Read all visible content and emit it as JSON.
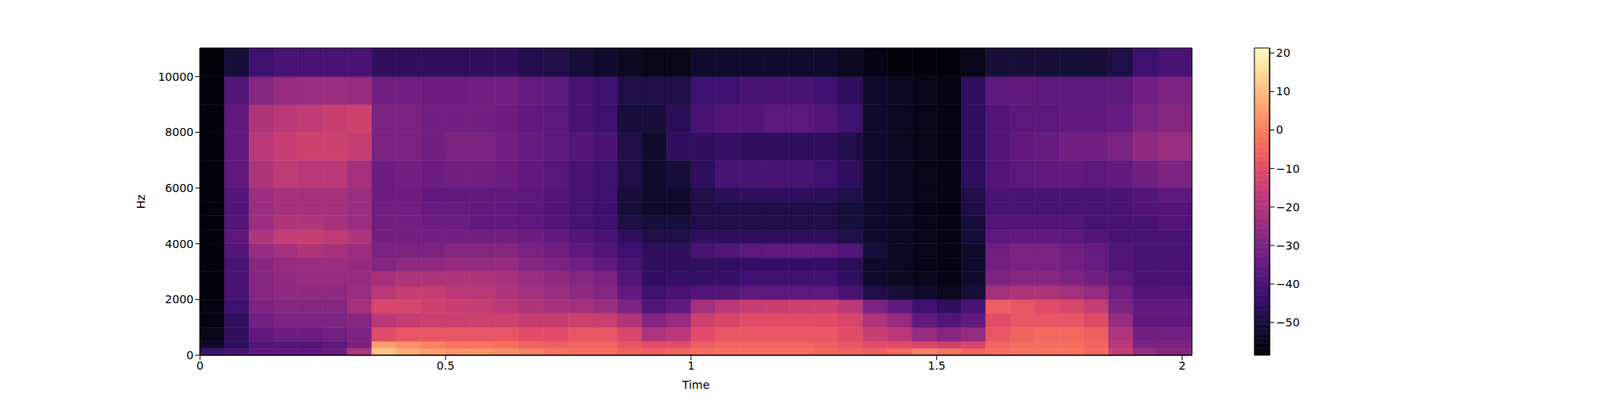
{
  "chart_data": {
    "type": "heatmap",
    "x_label": "Time",
    "y_label": "Hz",
    "xlim": [
      0,
      2.02
    ],
    "xticks": [
      0,
      0.5,
      1,
      1.5,
      2
    ],
    "ylim": [
      0,
      11025
    ],
    "yticks": [
      0,
      2000,
      4000,
      6000,
      8000,
      10000
    ],
    "x_edges": [
      0,
      0.05,
      0.1,
      0.15,
      0.2,
      0.25,
      0.3,
      0.35,
      0.4,
      0.45,
      0.5,
      0.55,
      0.6,
      0.65,
      0.7,
      0.75,
      0.8,
      0.85,
      0.9,
      0.95,
      1.0,
      1.05,
      1.1,
      1.15,
      1.2,
      1.25,
      1.3,
      1.35,
      1.4,
      1.45,
      1.5,
      1.55,
      1.6,
      1.65,
      1.7,
      1.75,
      1.8,
      1.85,
      1.9,
      1.95,
      2.02
    ],
    "y_edges": [
      0,
      250,
      500,
      1000,
      1500,
      2000,
      2500,
      3000,
      3500,
      4000,
      4500,
      5000,
      5500,
      6000,
      7000,
      8000,
      9000,
      10000,
      11025
    ],
    "cells": [
      [
        -42,
        -52,
        -55,
        -56,
        -56,
        -57,
        -57,
        -57,
        -57,
        -57,
        -57,
        -57,
        -57,
        -57,
        -57,
        -57,
        -57,
        -58
      ],
      [
        -40,
        -45,
        -45,
        -45,
        -42,
        -40,
        -40,
        -40,
        -38,
        -36,
        -38,
        -38,
        -38,
        -35,
        -35,
        -35,
        -38,
        -50
      ],
      [
        -35,
        -38,
        -35,
        -32,
        -30,
        -28,
        -28,
        -27,
        -25,
        -20,
        -24,
        -24,
        -24,
        -20,
        -18,
        -20,
        -28,
        -42
      ],
      [
        -35,
        -38,
        -33,
        -30,
        -28,
        -26,
        -26,
        -25,
        -22,
        -16,
        -20,
        -22,
        -22,
        -17,
        -15,
        -18,
        -25,
        -40
      ],
      [
        -35,
        -38,
        -33,
        -30,
        -28,
        -26,
        -25,
        -24,
        -20,
        -15,
        -20,
        -22,
        -22,
        -18,
        -14,
        -17,
        -24,
        -40
      ],
      [
        -33,
        -36,
        -32,
        -30,
        -28,
        -26,
        -25,
        -24,
        -22,
        -17,
        -22,
        -22,
        -22,
        -18,
        -14,
        -15,
        -24,
        -40
      ],
      [
        -20,
        -30,
        -30,
        -28,
        -22,
        -24,
        -25,
        -25,
        -24,
        -20,
        -24,
        -24,
        -24,
        -22,
        -16,
        -14,
        -25,
        -40
      ],
      [
        12,
        5,
        -10,
        -18,
        -12,
        -18,
        -22,
        -28,
        -30,
        -32,
        -32,
        -32,
        -33,
        -33,
        -30,
        -30,
        -32,
        -45
      ],
      [
        8,
        3,
        -8,
        -16,
        -12,
        -16,
        -20,
        -26,
        -30,
        -32,
        -32,
        -32,
        -33,
        -32,
        -30,
        -30,
        -32,
        -45
      ],
      [
        5,
        0,
        -8,
        -15,
        -14,
        -16,
        -20,
        -26,
        -30,
        -32,
        -33,
        -34,
        -35,
        -33,
        -32,
        -32,
        -33,
        -45
      ],
      [
        3,
        -2,
        -8,
        -15,
        -15,
        -18,
        -20,
        -25,
        -28,
        -32,
        -33,
        -34,
        -35,
        -32,
        -30,
        -32,
        -33,
        -45
      ],
      [
        3,
        -2,
        -8,
        -14,
        -16,
        -18,
        -20,
        -25,
        -28,
        -32,
        -35,
        -35,
        -35,
        -32,
        -30,
        -32,
        -32,
        -45
      ],
      [
        2,
        -3,
        -8,
        -14,
        -18,
        -20,
        -22,
        -25,
        -28,
        -32,
        -35,
        -35,
        -35,
        -33,
        -32,
        -33,
        -32,
        -45
      ],
      [
        0,
        -5,
        -10,
        -16,
        -20,
        -22,
        -24,
        -28,
        -30,
        -33,
        -36,
        -36,
        -36,
        -35,
        -34,
        -35,
        -34,
        -47
      ],
      [
        -2,
        -6,
        -10,
        -16,
        -22,
        -24,
        -26,
        -30,
        -32,
        -35,
        -38,
        -38,
        -38,
        -37,
        -36,
        -36,
        -36,
        -48
      ],
      [
        -3,
        -5,
        -8,
        -14,
        -22,
        -26,
        -28,
        -32,
        -35,
        -38,
        -40,
        -40,
        -40,
        -40,
        -38,
        -40,
        -40,
        -50
      ],
      [
        -3,
        -5,
        -8,
        -15,
        -24,
        -28,
        -30,
        -35,
        -38,
        -40,
        -42,
        -42,
        -42,
        -42,
        -40,
        -42,
        -42,
        -52
      ],
      [
        -5,
        -8,
        -12,
        -20,
        -30,
        -35,
        -38,
        -40,
        -42,
        -45,
        -48,
        -50,
        -50,
        -48,
        -48,
        -50,
        -48,
        -54
      ],
      [
        -6,
        -10,
        -20,
        -28,
        -38,
        -42,
        -45,
        -45,
        -45,
        -48,
        -50,
        -52,
        -52,
        -52,
        -52,
        -50,
        -48,
        -55
      ],
      [
        -5,
        -10,
        -18,
        -25,
        -35,
        -40,
        -44,
        -45,
        -45,
        -48,
        -50,
        -52,
        -52,
        -50,
        -45,
        -46,
        -48,
        -55
      ],
      [
        -3,
        -6,
        -10,
        -14,
        -22,
        -38,
        -44,
        -45,
        -40,
        -45,
        -48,
        -48,
        -48,
        -45,
        -45,
        -40,
        -42,
        -52
      ],
      [
        -3,
        -5,
        -8,
        -12,
        -18,
        -38,
        -44,
        -45,
        -38,
        -45,
        -48,
        -48,
        -46,
        -40,
        -44,
        -38,
        -42,
        -52
      ],
      [
        -3,
        -5,
        -8,
        -10,
        -16,
        -36,
        -42,
        -44,
        -36,
        -45,
        -48,
        -48,
        -45,
        -40,
        -45,
        -38,
        -40,
        -52
      ],
      [
        -3,
        -5,
        -8,
        -10,
        -15,
        -36,
        -42,
        -44,
        -35,
        -45,
        -48,
        -48,
        -45,
        -40,
        -45,
        -36,
        -40,
        -52
      ],
      [
        -3,
        -5,
        -8,
        -10,
        -14,
        -36,
        -42,
        -44,
        -35,
        -45,
        -48,
        -48,
        -45,
        -40,
        -45,
        -36,
        -40,
        -52
      ],
      [
        -4,
        -6,
        -8,
        -10,
        -14,
        -36,
        -42,
        -44,
        -36,
        -45,
        -48,
        -48,
        -46,
        -42,
        -45,
        -38,
        -42,
        -52
      ],
      [
        -5,
        -8,
        -10,
        -12,
        -18,
        -40,
        -45,
        -46,
        -38,
        -48,
        -50,
        -50,
        -48,
        -45,
        -48,
        -42,
        -45,
        -54
      ],
      [
        -6,
        -10,
        -15,
        -20,
        -30,
        -48,
        -52,
        -52,
        -50,
        -52,
        -52,
        -52,
        -52,
        -52,
        -52,
        -52,
        -52,
        -56
      ],
      [
        -4,
        -10,
        -18,
        -25,
        -35,
        -50,
        -54,
        -54,
        -54,
        -54,
        -54,
        -54,
        -54,
        -54,
        -54,
        -54,
        -54,
        -57
      ],
      [
        0,
        -12,
        -25,
        -35,
        -42,
        -52,
        -55,
        -55,
        -55,
        -55,
        -55,
        -55,
        -55,
        -55,
        -55,
        -55,
        -55,
        -57
      ],
      [
        -2,
        -14,
        -28,
        -38,
        -45,
        -54,
        -56,
        -56,
        -56,
        -56,
        -56,
        -56,
        -56,
        -56,
        -56,
        -56,
        -56,
        -57
      ],
      [
        -5,
        -12,
        -25,
        -35,
        -40,
        -50,
        -52,
        -52,
        -52,
        -50,
        -50,
        -48,
        -48,
        -45,
        -45,
        -45,
        -45,
        -55
      ],
      [
        -3,
        -5,
        -8,
        -10,
        -6,
        -22,
        -30,
        -32,
        -32,
        -36,
        -38,
        -40,
        -40,
        -38,
        -38,
        -38,
        -36,
        -50
      ],
      [
        -2,
        -3,
        -5,
        -8,
        -8,
        -20,
        -28,
        -30,
        -30,
        -35,
        -38,
        -40,
        -40,
        -36,
        -35,
        -36,
        -35,
        -50
      ],
      [
        -2,
        -3,
        -4,
        -8,
        -10,
        -20,
        -28,
        -30,
        -30,
        -35,
        -38,
        -40,
        -40,
        -35,
        -34,
        -36,
        -36,
        -50
      ],
      [
        -2,
        -3,
        -4,
        -8,
        -12,
        -22,
        -30,
        -32,
        -32,
        -36,
        -38,
        -40,
        -40,
        -35,
        -32,
        -35,
        -36,
        -50
      ],
      [
        -4,
        -5,
        -6,
        -10,
        -16,
        -25,
        -32,
        -34,
        -34,
        -38,
        -40,
        -40,
        -40,
        -36,
        -32,
        -35,
        -36,
        -50
      ],
      [
        -15,
        -18,
        -20,
        -25,
        -30,
        -32,
        -36,
        -38,
        -38,
        -40,
        -40,
        -40,
        -40,
        -35,
        -30,
        -34,
        -36,
        -48
      ],
      [
        -25,
        -30,
        -32,
        -35,
        -35,
        -38,
        -40,
        -40,
        -40,
        -40,
        -40,
        -38,
        -38,
        -32,
        -26,
        -30,
        -32,
        -42
      ],
      [
        -28,
        -30,
        -32,
        -35,
        -35,
        -38,
        -40,
        -40,
        -40,
        -40,
        -38,
        -38,
        -36,
        -30,
        -24,
        -28,
        -30,
        -40
      ]
    ],
    "colorbar_lim": [
      -58.5,
      21.3
    ],
    "colorbar_ticks": [
      {
        "value": -50,
        "label": "−50"
      },
      {
        "value": -40,
        "label": "−40"
      },
      {
        "value": -30,
        "label": "−30"
      },
      {
        "value": -20,
        "label": "−20"
      },
      {
        "value": -10,
        "label": "−10"
      },
      0,
      10,
      20
    ]
  }
}
